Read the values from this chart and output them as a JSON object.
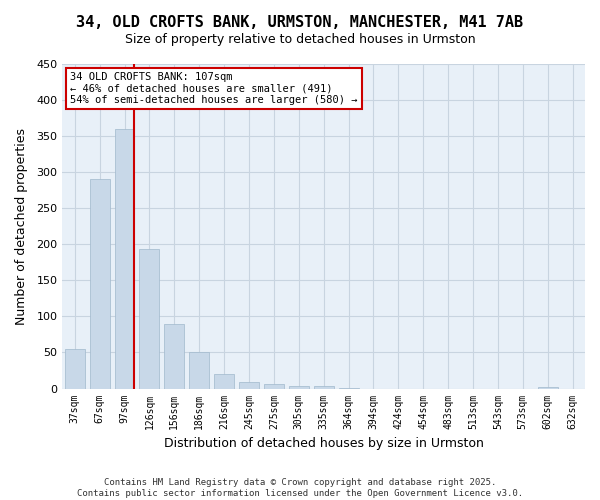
{
  "title": "34, OLD CROFTS BANK, URMSTON, MANCHESTER, M41 7AB",
  "subtitle": "Size of property relative to detached houses in Urmston",
  "xlabel": "Distribution of detached houses by size in Urmston",
  "ylabel": "Number of detached properties",
  "bar_color": "#c8d8e8",
  "bar_edge_color": "#a0b8cc",
  "grid_color": "#c8d4e0",
  "bg_color": "#e8f0f8",
  "annotation_box_color": "#cc0000",
  "property_line_color": "#cc0000",
  "bins": [
    "37sqm",
    "67sqm",
    "97sqm",
    "126sqm",
    "156sqm",
    "186sqm",
    "216sqm",
    "245sqm",
    "275sqm",
    "305sqm",
    "335sqm",
    "364sqm",
    "394sqm",
    "424sqm",
    "454sqm",
    "483sqm",
    "513sqm",
    "543sqm",
    "573sqm",
    "602sqm",
    "632sqm"
  ],
  "values": [
    55,
    290,
    360,
    193,
    90,
    50,
    20,
    9,
    6,
    4,
    3,
    1,
    0,
    0,
    0,
    0,
    0,
    0,
    0,
    2,
    0
  ],
  "property_bin_index": 2,
  "annotation_line1": "34 OLD CROFTS BANK: 107sqm",
  "annotation_line2": "← 46% of detached houses are smaller (491)",
  "annotation_line3": "54% of semi-detached houses are larger (580) →",
  "footer_line1": "Contains HM Land Registry data © Crown copyright and database right 2025.",
  "footer_line2": "Contains public sector information licensed under the Open Government Licence v3.0.",
  "ylim": [
    0,
    450
  ],
  "yticks": [
    0,
    50,
    100,
    150,
    200,
    250,
    300,
    350,
    400,
    450
  ]
}
